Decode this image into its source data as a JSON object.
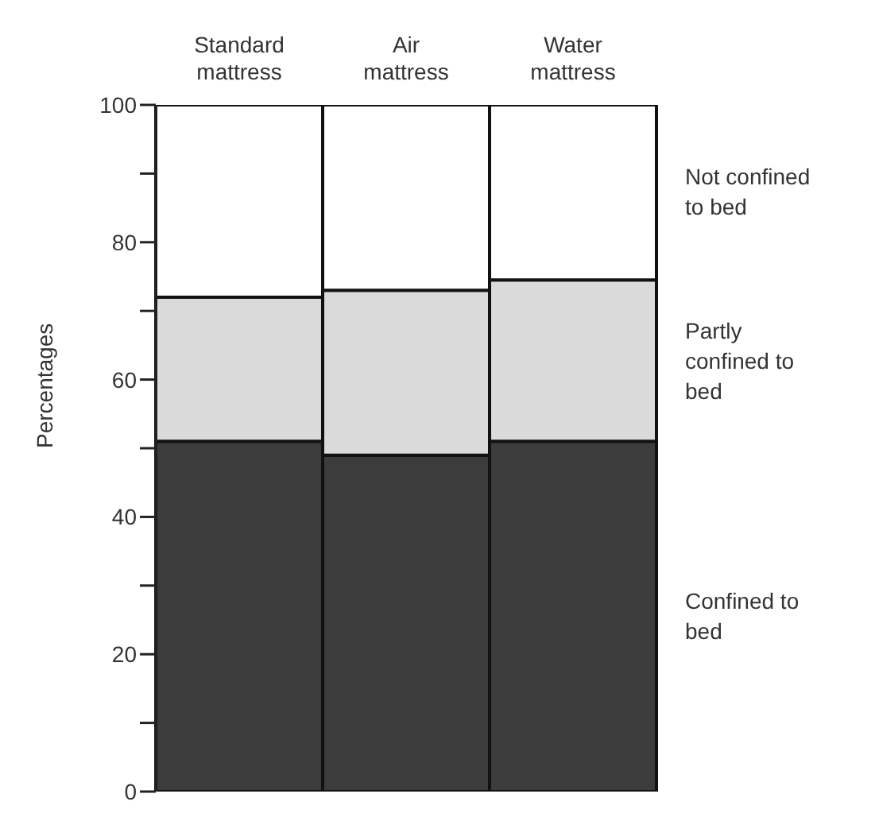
{
  "chart_data": {
    "type": "bar",
    "stacked": true,
    "ylabel": "Percentages",
    "categories": [
      "Standard mattress",
      "Air mattress",
      "Water mattress"
    ],
    "series": [
      {
        "name": "Confined to bed",
        "color": "#3c3c3c",
        "values": [
          51,
          49,
          51
        ]
      },
      {
        "name": "Partly confined to bed",
        "color": "#dadada",
        "values": [
          21,
          24,
          23.5
        ]
      },
      {
        "name": "Not confined to bed",
        "color": "#ffffff",
        "values": [
          28,
          27,
          25.5
        ]
      }
    ],
    "ylim": [
      0,
      100
    ],
    "yticks": [
      0,
      {
        "value": 10,
        "label": null
      },
      20,
      {
        "value": 30,
        "label": null
      },
      40,
      {
        "value": 50,
        "label": null
      },
      60,
      {
        "value": 70,
        "label": null
      },
      80,
      {
        "value": 90,
        "label": null
      },
      100
    ],
    "grid": false,
    "legend": false
  }
}
